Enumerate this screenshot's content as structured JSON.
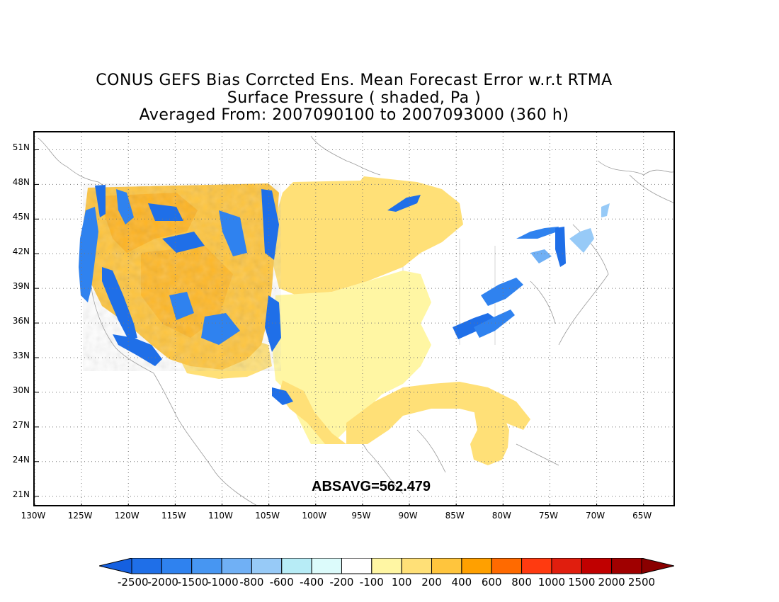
{
  "title": {
    "line1": "CONUS GEFS Bias Corrcted Ens. Mean Forecast Error w.r.t RTMA",
    "line2": "Surface Pressure ( shaded, Pa )",
    "line3": "Averaged From: 2007090100 to 2007093000 (360 h)"
  },
  "annotation": "ABSAVG=562.479",
  "axes": {
    "lat_ticks": [
      "51N",
      "48N",
      "45N",
      "42N",
      "39N",
      "36N",
      "33N",
      "30N",
      "27N",
      "24N",
      "21N"
    ],
    "lon_ticks": [
      "130W",
      "125W",
      "120W",
      "115W",
      "110W",
      "105W",
      "100W",
      "95W",
      "90W",
      "85W",
      "80W",
      "75W",
      "70W",
      "65W"
    ],
    "lat_range": [
      20,
      52.5
    ],
    "lon_range": [
      -130,
      -61.5
    ],
    "grid": true
  },
  "colorbar": {
    "labels": [
      "-2500",
      "-2000",
      "-1500",
      "-1000",
      "-800",
      "-600",
      "-400",
      "-200",
      "-100",
      "100",
      "200",
      "400",
      "600",
      "800",
      "1000",
      "1500",
      "2000",
      "2500"
    ],
    "colors": [
      "#1560e0",
      "#1f6fe8",
      "#2f82ef",
      "#4796f2",
      "#70b0f5",
      "#97caf7",
      "#b7ecf6",
      "#dcfbfb",
      "#ffffff",
      "#fff6a3",
      "#ffe077",
      "#ffc53d",
      "#ffa000",
      "#ff6a00",
      "#ff3a10",
      "#e01e0e",
      "#c00000",
      "#a00000",
      "#8a0000"
    ]
  }
}
